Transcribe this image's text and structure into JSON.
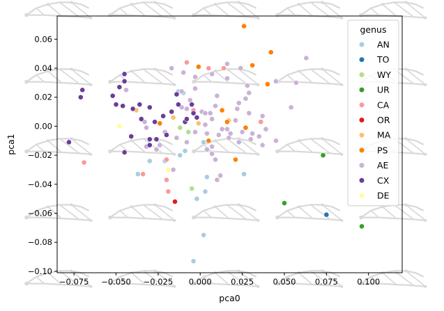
{
  "chart_data": {
    "type": "scatter",
    "xlabel": "pca0",
    "ylabel": "pca1",
    "xlim": [
      -0.085,
      0.12
    ],
    "ylim": [
      -0.101,
      0.076
    ],
    "xticks": [
      -0.075,
      -0.05,
      -0.025,
      0.0,
      0.025,
      0.05,
      0.075,
      0.1
    ],
    "xtick_labels": [
      "−0.075",
      "−0.050",
      "−0.025",
      "0.000",
      "0.025",
      "0.050",
      "0.075",
      "0.100"
    ],
    "yticks": [
      -0.1,
      -0.08,
      -0.06,
      -0.04,
      -0.02,
      0.0,
      0.02,
      0.04,
      0.06
    ],
    "ytick_labels": [
      "−0.10",
      "−0.08",
      "−0.06",
      "−0.04",
      "−0.02",
      "0.00",
      "0.02",
      "0.04",
      "0.06"
    ],
    "grid": false,
    "legend": {
      "title": "genus",
      "placement": "top-right"
    },
    "background": "wing skeleton illustrations tiled behind the plot in light gray",
    "series": [
      {
        "name": "AN",
        "color": "#a6cee3",
        "points": [
          [
            -0.013,
            0.024
          ],
          [
            -0.01,
            0.023
          ],
          [
            -0.037,
            -0.033
          ],
          [
            -0.03,
            -0.024
          ],
          [
            -0.021,
            -0.024
          ],
          [
            -0.012,
            -0.02
          ],
          [
            0.004,
            -0.035
          ],
          [
            0.003,
            -0.045
          ],
          [
            -0.002,
            -0.05
          ],
          [
            0.002,
            -0.075
          ],
          [
            -0.004,
            -0.093
          ],
          [
            0.026,
            -0.033
          ],
          [
            -0.009,
            -0.017
          ],
          [
            0.002,
            -0.011
          ]
        ]
      },
      {
        "name": "TO",
        "color": "#1f78b4",
        "points": [
          [
            0.075,
            -0.061
          ]
        ]
      },
      {
        "name": "WY",
        "color": "#b2df8a",
        "points": [
          [
            -0.012,
            -0.001
          ],
          [
            -0.007,
            -0.004
          ],
          [
            -0.005,
            -0.043
          ]
        ]
      },
      {
        "name": "UR",
        "color": "#33a02c",
        "points": [
          [
            0.073,
            -0.02
          ],
          [
            0.05,
            -0.053
          ],
          [
            0.096,
            -0.069
          ]
        ]
      },
      {
        "name": "CA",
        "color": "#fb9a99",
        "points": [
          [
            -0.069,
            -0.025
          ],
          [
            -0.034,
            -0.033
          ],
          [
            -0.019,
            -0.045
          ],
          [
            -0.02,
            -0.037
          ],
          [
            -0.02,
            -0.023
          ],
          [
            -0.008,
            0.044
          ],
          [
            0.005,
            0.04
          ],
          [
            0.014,
            0.04
          ],
          [
            0.036,
            0.003
          ],
          [
            -0.004,
            0.011
          ]
        ]
      },
      {
        "name": "OR",
        "color": "#e31a1c",
        "points": [
          [
            -0.015,
            -0.052
          ]
        ]
      },
      {
        "name": "MA",
        "color": "#fdbf6f",
        "points": [
          [
            -0.038,
            0.011
          ],
          [
            -0.016,
            0.006
          ],
          [
            -0.001,
            0.002
          ],
          [
            0.017,
            0.004
          ]
        ]
      },
      {
        "name": "PS",
        "color": "#ff7f00",
        "points": [
          [
            0.026,
            0.069
          ],
          [
            0.042,
            0.051
          ],
          [
            0.031,
            0.042
          ],
          [
            -0.001,
            0.041
          ],
          [
            0.04,
            0.029
          ],
          [
            0.013,
            0.011
          ],
          [
            0.016,
            0.003
          ],
          [
            0.027,
            -0.001
          ],
          [
            -0.024,
            0.002
          ],
          [
            0.005,
            -0.01
          ],
          [
            0.021,
            -0.023
          ]
        ]
      },
      {
        "name": "AE",
        "color": "#cab2d6",
        "points": [
          [
            0.063,
            0.047
          ],
          [
            0.045,
            0.031
          ],
          [
            0.057,
            0.03
          ],
          [
            -0.017,
            0.04
          ],
          [
            -0.01,
            0.037
          ],
          [
            -0.003,
            0.034
          ],
          [
            0.007,
            0.036
          ],
          [
            0.016,
            0.043
          ],
          [
            0.024,
            0.04
          ],
          [
            0.016,
            0.033
          ],
          [
            0.028,
            0.028
          ],
          [
            0.029,
            0.023
          ],
          [
            0.027,
            0.019
          ],
          [
            0.01,
            0.021
          ],
          [
            -0.003,
            0.026
          ],
          [
            -0.011,
            0.024
          ],
          [
            -0.006,
            0.018
          ],
          [
            -0.044,
            0.025
          ],
          [
            -0.011,
            0.013
          ],
          [
            -0.008,
            0.012
          ],
          [
            0.006,
            0.009
          ],
          [
            0.001,
            0.01
          ],
          [
            0.003,
            0.009
          ],
          [
            0.009,
            0.014
          ],
          [
            0.022,
            0.012
          ],
          [
            0.023,
            0.016
          ],
          [
            0.029,
            0.009
          ],
          [
            0.037,
            0.007
          ],
          [
            0.054,
            0.013
          ],
          [
            0.039,
            -0.002
          ],
          [
            0.045,
            -0.01
          ],
          [
            0.037,
            -0.013
          ],
          [
            0.035,
            -0.007
          ],
          [
            0.025,
            -0.004
          ],
          [
            0.016,
            -0.002
          ],
          [
            0.011,
            -0.006
          ],
          [
            0.004,
            -0.005
          ],
          [
            -0.003,
            -0.004
          ],
          [
            0.003,
            0.001
          ],
          [
            0.007,
            0.005
          ],
          [
            -0.033,
            0.003
          ],
          [
            -0.032,
            -0.001
          ],
          [
            -0.021,
            -0.004
          ],
          [
            -0.014,
            -0.008
          ],
          [
            -0.008,
            -0.011
          ],
          [
            0.004,
            -0.016
          ],
          [
            0.007,
            -0.019
          ],
          [
            0.009,
            -0.023
          ],
          [
            0.012,
            -0.034
          ],
          [
            0.01,
            -0.037
          ],
          [
            0.017,
            -0.008
          ],
          [
            0.023,
            -0.011
          ],
          [
            0.03,
            -0.009
          ],
          [
            -0.024,
            -0.013
          ],
          [
            -0.016,
            -0.03
          ],
          [
            0.007,
            -0.014
          ],
          [
            0.013,
            -0.002
          ],
          [
            0.021,
            0.004
          ],
          [
            0.018,
            -0.005
          ],
          [
            0.031,
            -0.005
          ],
          [
            -0.032,
            -0.014
          ],
          [
            -0.026,
            -0.016
          ]
        ]
      },
      {
        "name": "CX",
        "color": "#6a3d9a",
        "points": [
          [
            -0.07,
            0.025
          ],
          [
            -0.071,
            0.02
          ],
          [
            -0.05,
            0.015
          ],
          [
            -0.052,
            0.021
          ],
          [
            -0.048,
            0.027
          ],
          [
            -0.045,
            0.036
          ],
          [
            -0.045,
            0.031
          ],
          [
            -0.046,
            0.014
          ],
          [
            -0.04,
            0.012
          ],
          [
            -0.036,
            0.015
          ],
          [
            -0.03,
            0.013
          ],
          [
            -0.035,
            0.005
          ],
          [
            -0.027,
            0.003
          ],
          [
            -0.022,
            0.007
          ],
          [
            -0.017,
            0.01
          ],
          [
            -0.013,
            0.015
          ],
          [
            -0.005,
            0.015
          ],
          [
            -0.004,
            0.009
          ],
          [
            -0.002,
            0.006
          ],
          [
            -0.009,
            0.003
          ],
          [
            -0.014,
            0.022
          ],
          [
            -0.02,
            -0.006
          ],
          [
            -0.03,
            -0.009
          ],
          [
            -0.03,
            -0.013
          ],
          [
            -0.026,
            -0.009
          ],
          [
            -0.041,
            -0.007
          ],
          [
            -0.045,
            -0.018
          ],
          [
            -0.078,
            -0.011
          ],
          [
            -0.008,
            0.005
          ]
        ]
      },
      {
        "name": "DE",
        "color": "#ffff99",
        "points": [
          [
            -0.048,
            0.0
          ],
          [
            -0.019,
            -0.03
          ]
        ]
      }
    ]
  }
}
